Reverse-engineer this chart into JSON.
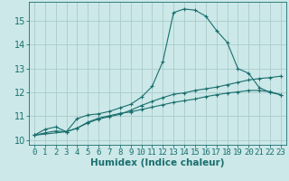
{
  "xlabel": "Humidex (Indice chaleur)",
  "background_color": "#cce8e8",
  "grid_color": "#aacccc",
  "line_color": "#1a6e6e",
  "xlim": [
    -0.5,
    23.5
  ],
  "ylim": [
    9.8,
    15.8
  ],
  "xticks": [
    0,
    1,
    2,
    3,
    4,
    5,
    6,
    7,
    8,
    9,
    10,
    11,
    12,
    13,
    14,
    15,
    16,
    17,
    18,
    19,
    20,
    21,
    22,
    23
  ],
  "yticks": [
    10,
    11,
    12,
    13,
    14,
    15
  ],
  "series": [
    {
      "x": [
        0,
        1,
        2,
        3,
        4,
        5,
        6,
        7,
        8,
        9,
        10,
        11,
        12,
        13,
        14,
        15,
        16,
        17,
        18,
        19,
        20,
        21,
        22,
        23
      ],
      "y": [
        10.2,
        10.45,
        10.55,
        10.35,
        10.9,
        11.05,
        11.1,
        11.2,
        11.35,
        11.5,
        11.8,
        12.25,
        13.3,
        15.35,
        15.5,
        15.45,
        15.2,
        14.6,
        14.1,
        13.0,
        12.8,
        12.2,
        12.0,
        11.9
      ]
    },
    {
      "x": [
        0,
        1,
        2,
        3,
        4,
        5,
        6,
        7,
        8,
        9,
        10,
        11,
        12,
        13,
        14,
        15,
        16,
        17,
        18,
        19,
        20,
        21,
        22,
        23
      ],
      "y": [
        10.2,
        10.3,
        10.38,
        10.35,
        10.5,
        10.75,
        10.92,
        11.02,
        11.12,
        11.18,
        11.28,
        11.38,
        11.48,
        11.58,
        11.65,
        11.72,
        11.82,
        11.9,
        11.97,
        12.02,
        12.08,
        12.08,
        12.03,
        11.9
      ]
    },
    {
      "x": [
        0,
        3,
        4,
        5,
        6,
        7,
        8,
        9,
        10,
        11,
        12,
        13,
        14,
        15,
        16,
        17,
        18,
        19,
        20,
        21,
        22,
        23
      ],
      "y": [
        10.2,
        10.35,
        10.5,
        10.72,
        10.88,
        10.98,
        11.08,
        11.25,
        11.45,
        11.62,
        11.78,
        11.92,
        11.98,
        12.08,
        12.15,
        12.22,
        12.32,
        12.42,
        12.52,
        12.58,
        12.62,
        12.68
      ]
    }
  ],
  "xlabel_fontsize": 7.5,
  "tick_fontsize": 6.5
}
